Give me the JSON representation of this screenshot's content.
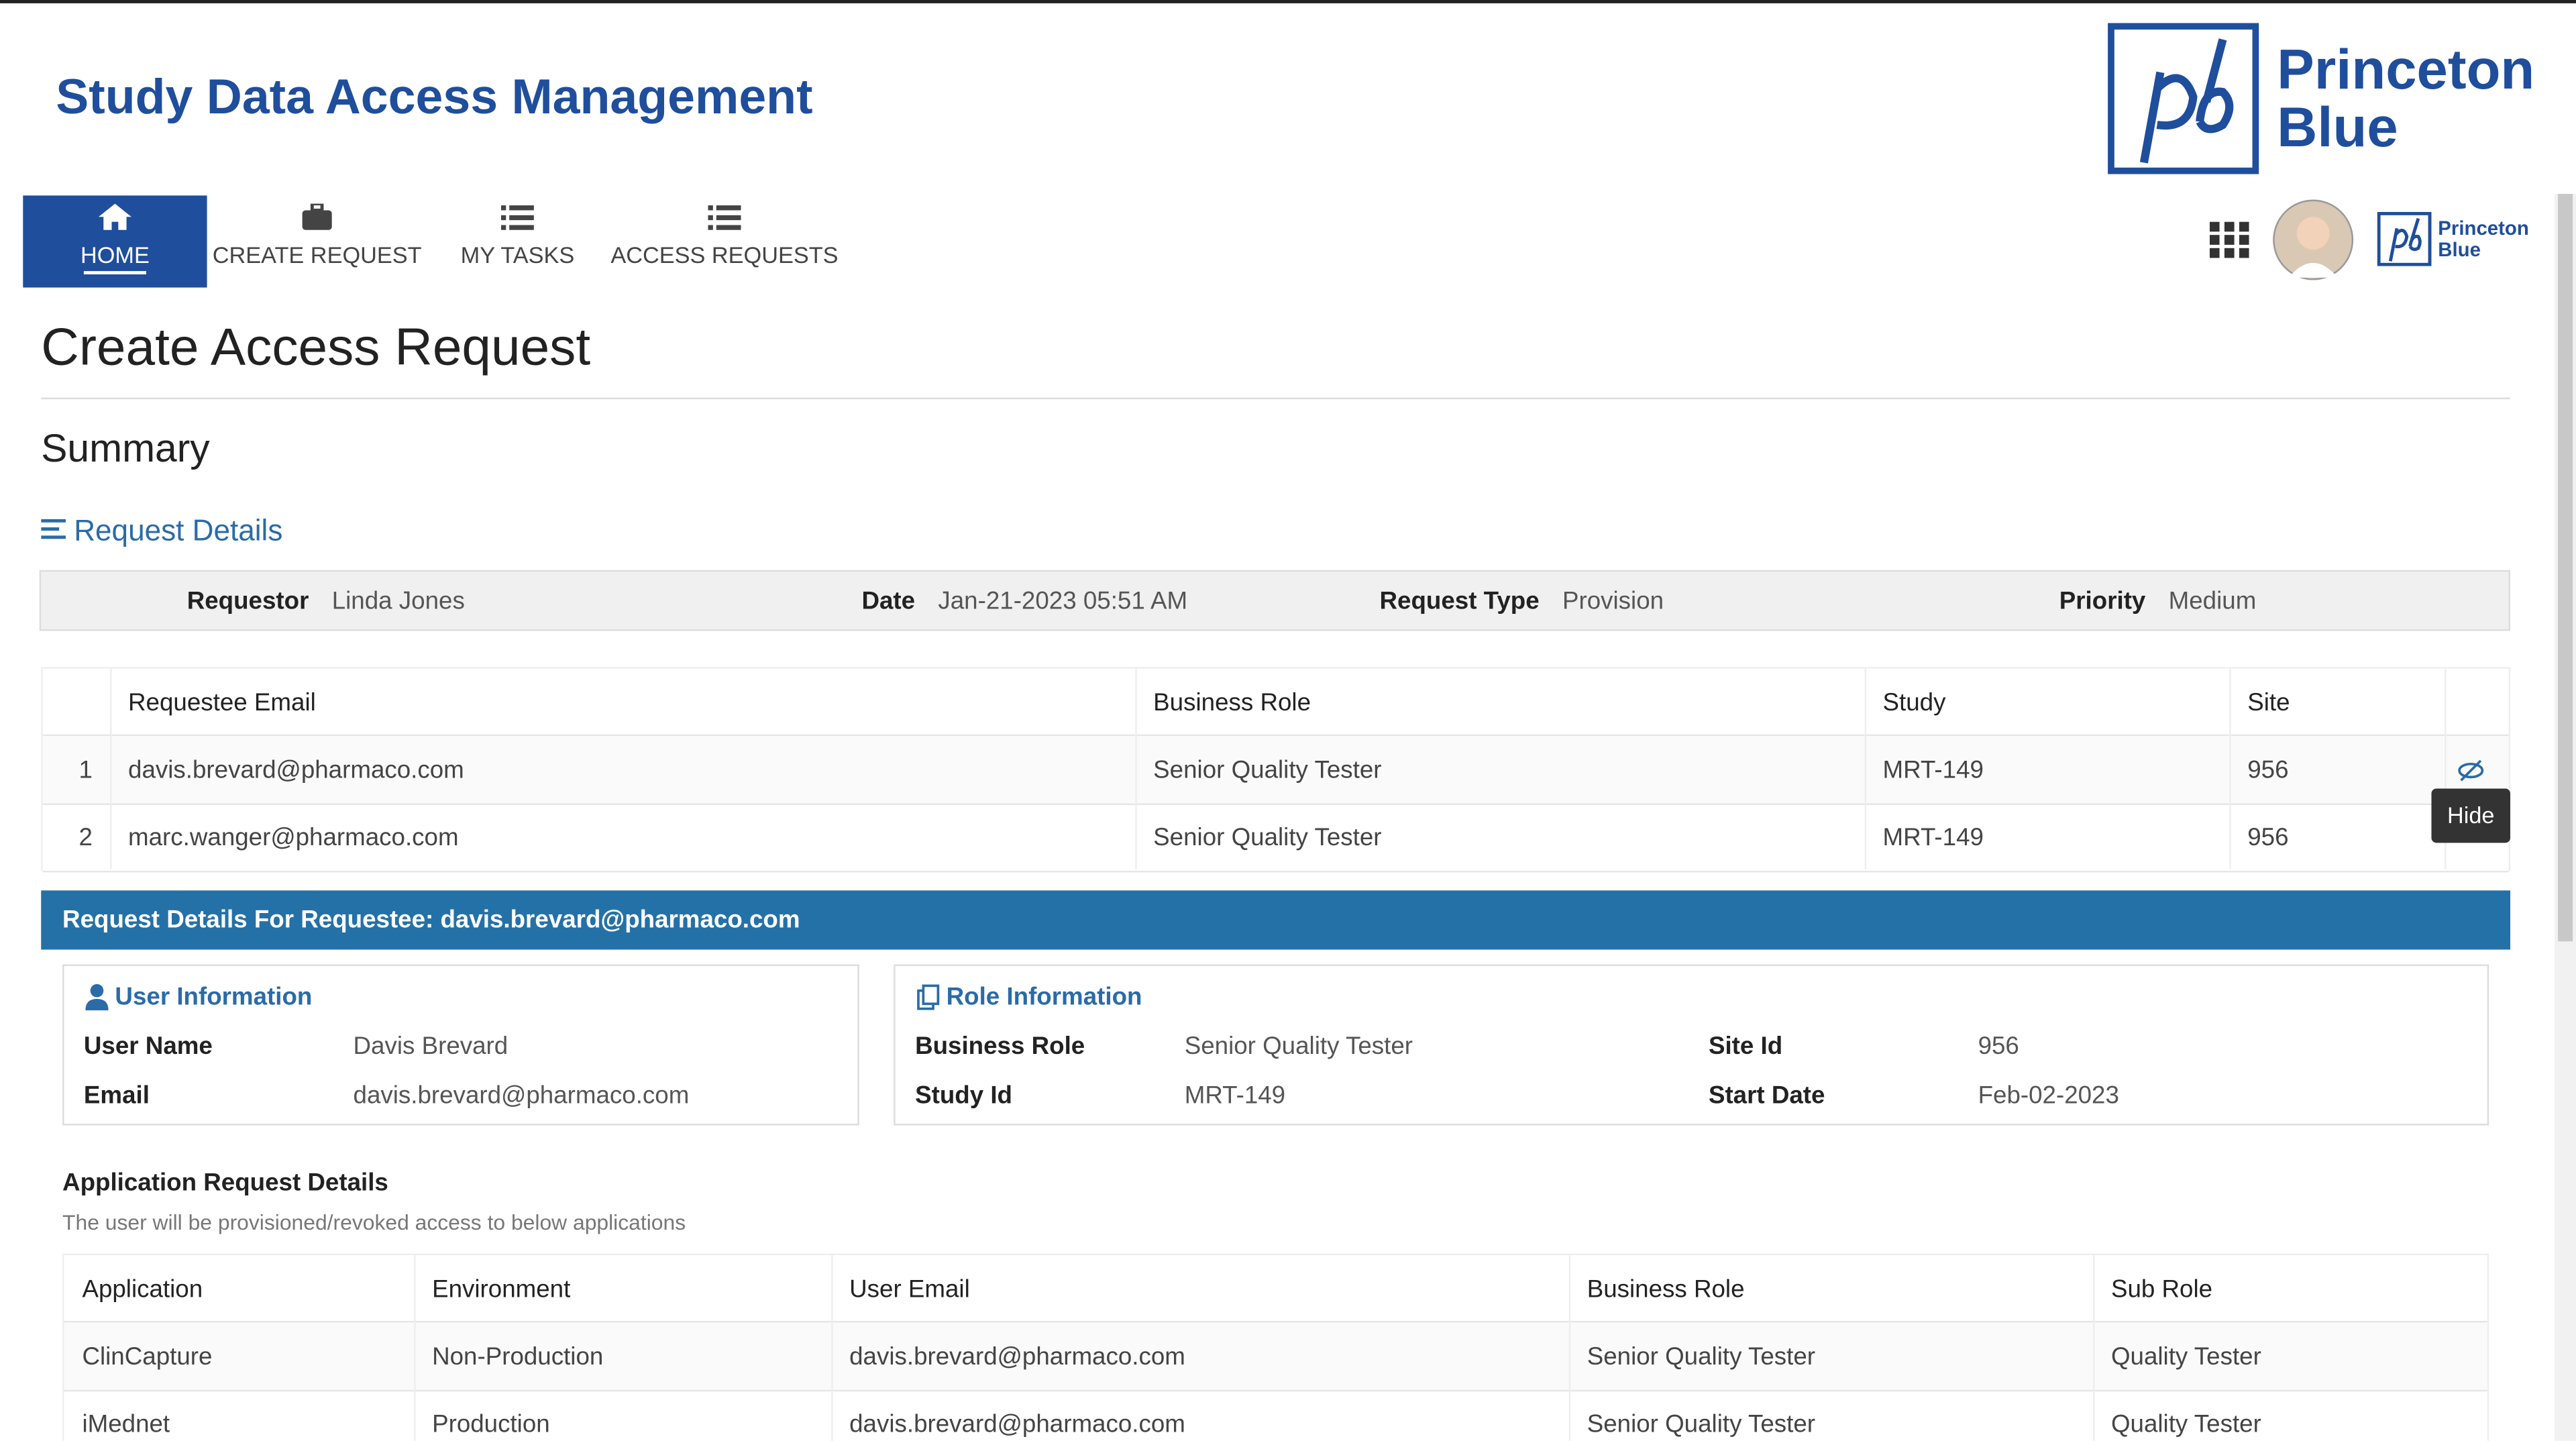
{
  "header": {
    "title": "Study Data Access Management",
    "logo_lines": [
      "Princeton",
      "Blue"
    ]
  },
  "nav": [
    {
      "label": "HOME",
      "active": true
    },
    {
      "label": "CREATE REQUEST",
      "active": false
    },
    {
      "label": "MY TASKS",
      "active": false
    },
    {
      "label": "ACCESS REQUESTS",
      "active": false
    }
  ],
  "page_title": "Create Access Request",
  "section_title": "Summary",
  "request_details": {
    "heading": "Request Details",
    "fields": [
      {
        "label": "Requestor",
        "value": "Linda Jones"
      },
      {
        "label": "Date",
        "value": "Jan-21-2023 05:51 AM"
      },
      {
        "label": "Request Type",
        "value": "Provision"
      },
      {
        "label": "Priority",
        "value": "Medium"
      }
    ]
  },
  "requestees": {
    "columns": [
      "Requestee Email",
      "Business Role",
      "Study",
      "Site"
    ],
    "rows": [
      {
        "index": 1,
        "cells": [
          "davis.brevard@pharmaco.com",
          "Senior Quality Tester",
          "MRT-149",
          "956"
        ]
      },
      {
        "index": 2,
        "cells": [
          "marc.wanger@pharmaco.com",
          "Senior Quality Tester",
          "MRT-149",
          "956"
        ]
      }
    ]
  },
  "tooltip": "Hide",
  "detail_banner": "Request Details For Requestee: davis.brevard@pharmaco.com",
  "user_info": {
    "heading": "User Information",
    "fields": [
      {
        "label": "User Name",
        "value": "Davis Brevard"
      },
      {
        "label": "Email",
        "value": "davis.brevard@pharmaco.com"
      }
    ]
  },
  "role_info": {
    "heading": "Role Information",
    "fields": [
      {
        "label": "Business Role",
        "value": "Senior Quality Tester"
      },
      {
        "label": "Site Id",
        "value": "956"
      },
      {
        "label": "Study Id",
        "value": "MRT-149"
      },
      {
        "label": "Start Date",
        "value": "Feb-02-2023"
      }
    ]
  },
  "applications": {
    "heading": "Application Request Details",
    "note": "The user will be provisioned/revoked access to below applications",
    "columns": [
      "Application",
      "Environment",
      "User Email",
      "Business Role",
      "Sub Role"
    ],
    "rows": [
      [
        "ClinCapture",
        "Non-Production",
        "davis.brevard@pharmaco.com",
        "Senior Quality Tester",
        "Quality Tester"
      ],
      [
        "iMednet",
        "Production",
        "davis.brevard@pharmaco.com",
        "Senior Quality Tester",
        "Quality Tester"
      ]
    ]
  }
}
